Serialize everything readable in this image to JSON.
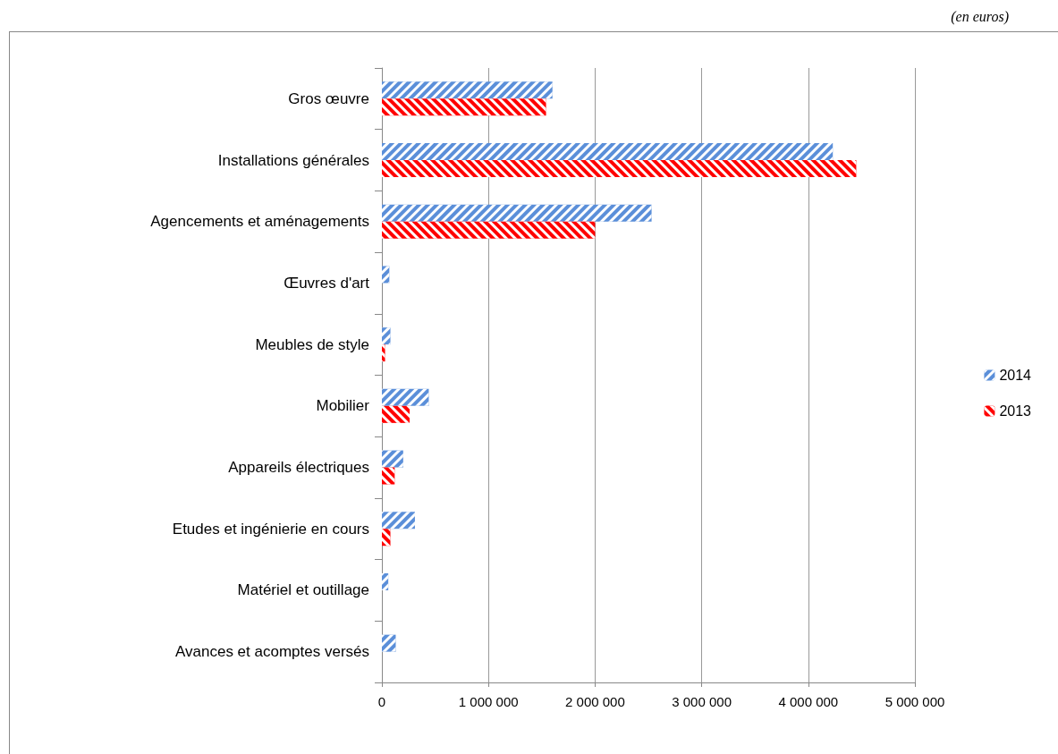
{
  "chart_data": {
    "type": "bar",
    "orientation": "horizontal",
    "annotations": [
      "(en euros)"
    ],
    "categories": [
      "Gros œuvre",
      "Installations générales",
      "Agencements et aménagements",
      "Œuvres d'art",
      "Meubles de style",
      "Mobilier",
      "Appareils électriques",
      "Etudes et ingénierie en cours",
      "Matériel et outillage",
      "Avances et acomptes versés"
    ],
    "series": [
      {
        "name": "2014",
        "color": "#5b8fd9",
        "values": [
          1600000,
          4230000,
          2530000,
          70000,
          80000,
          440000,
          200000,
          310000,
          60000,
          130000
        ]
      },
      {
        "name": "2013",
        "color": "#ff0000",
        "values": [
          1540000,
          4450000,
          2000000,
          null,
          30000,
          260000,
          120000,
          80000,
          null,
          null
        ]
      }
    ],
    "xlim": [
      0,
      5000000
    ],
    "xticks": [
      0,
      {
        "value": 1000000,
        "label": "1 000 000"
      },
      {
        "value": 2000000,
        "label": "2 000 000"
      },
      {
        "value": 3000000,
        "label": "3 000 000"
      },
      {
        "value": 4000000,
        "label": "4 000 000"
      },
      {
        "value": 5000000,
        "label": "5 000 000"
      }
    ],
    "grid": "x",
    "legend": "right"
  }
}
